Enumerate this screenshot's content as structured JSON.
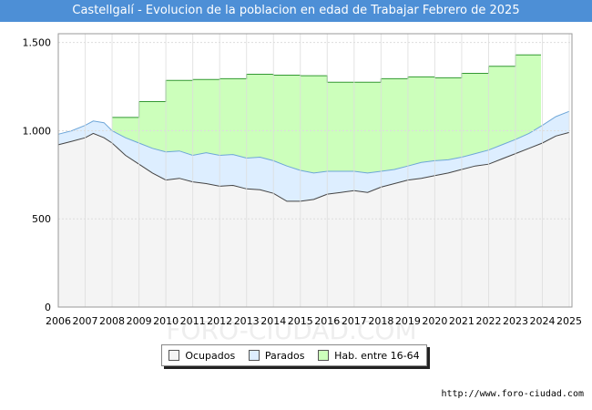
{
  "header": {
    "title": "Castellgalí - Evolucion de la poblacion en edad de Trabajar Febrero de 2025"
  },
  "footer": {
    "source": "http://www.foro-ciudad.com",
    "watermark": "FORO-CIUDAD.COM"
  },
  "colors": {
    "header_bg": "#4d8fd6",
    "ocupados_fill": "#f4f4f4",
    "ocupados_line": "#444444",
    "parados_fill": "#ddeeff",
    "parados_line": "#6ea6d8",
    "hab_fill": "#ccffbb",
    "hab_line": "#339933",
    "grid": "#dddddd",
    "plot_border": "#999999"
  },
  "chart_data": {
    "type": "area",
    "title": "Castellgalí - Evolucion de la poblacion en edad de Trabajar Febrero de 2025",
    "xlabel": "",
    "ylabel": "",
    "xlim": [
      2006,
      2025.1
    ],
    "ylim": [
      0,
      1550
    ],
    "x_ticks": [
      "2006",
      "2007",
      "2008",
      "2009",
      "2010",
      "2011",
      "2012",
      "2013",
      "2014",
      "2015",
      "2016",
      "2017",
      "2018",
      "2019",
      "2020",
      "2021",
      "2022",
      "2023",
      "2024",
      "2025"
    ],
    "y_ticks": [
      {
        "value": 0,
        "label": "0"
      },
      {
        "value": 500,
        "label": "500"
      },
      {
        "value": 1000,
        "label": "1.000"
      },
      {
        "value": 1500,
        "label": "1.500"
      }
    ],
    "legend": [
      "Ocupados",
      "Parados",
      "Hab. entre 16-64"
    ],
    "legend_position": "bottom-center",
    "series": [
      {
        "name": "Hab. entre 16-64",
        "x": [
          2008.0,
          2009.0,
          2009.0,
          2010.0,
          2010.0,
          2011.0,
          2011.0,
          2012.0,
          2012.0,
          2013.0,
          2013.0,
          2014.0,
          2014.0,
          2015.0,
          2015.0,
          2016.0,
          2016.0,
          2017.0,
          2017.0,
          2018.0,
          2018.0,
          2019.0,
          2019.0,
          2020.0,
          2020.0,
          2021.0,
          2021.0,
          2022.0,
          2022.0,
          2023.0,
          2023.0,
          2023.95
        ],
        "values": [
          1075,
          1075,
          1165,
          1165,
          1285,
          1285,
          1290,
          1290,
          1295,
          1295,
          1320,
          1320,
          1315,
          1315,
          1312,
          1312,
          1275,
          1275,
          1275,
          1275,
          1295,
          1295,
          1305,
          1305,
          1300,
          1300,
          1325,
          1325,
          1365,
          1365,
          1430,
          1430
        ]
      },
      {
        "name": "Parados",
        "x": [
          2006.0,
          2006.5,
          2007.0,
          2007.3,
          2007.7,
          2008.0,
          2008.5,
          2009.0,
          2009.5,
          2010.0,
          2010.5,
          2011.0,
          2011.5,
          2012.0,
          2012.5,
          2013.0,
          2013.5,
          2014.0,
          2014.5,
          2015.0,
          2015.5,
          2016.0,
          2016.5,
          2017.0,
          2017.5,
          2018.0,
          2018.5,
          2019.0,
          2019.5,
          2020.0,
          2020.5,
          2021.0,
          2021.5,
          2022.0,
          2022.5,
          2023.0,
          2023.5,
          2024.0,
          2024.5,
          2025.0
        ],
        "values": [
          980,
          1000,
          1030,
          1055,
          1045,
          1000,
          960,
          930,
          900,
          880,
          885,
          860,
          875,
          860,
          865,
          845,
          850,
          830,
          800,
          775,
          760,
          770,
          770,
          770,
          760,
          770,
          780,
          800,
          820,
          830,
          835,
          850,
          870,
          890,
          920,
          950,
          985,
          1030,
          1080,
          1110
        ]
      },
      {
        "name": "Ocupados",
        "x": [
          2006.0,
          2006.5,
          2007.0,
          2007.3,
          2007.7,
          2008.0,
          2008.5,
          2009.0,
          2009.5,
          2010.0,
          2010.5,
          2011.0,
          2011.5,
          2012.0,
          2012.5,
          2013.0,
          2013.5,
          2014.0,
          2014.5,
          2015.0,
          2015.5,
          2016.0,
          2016.5,
          2017.0,
          2017.5,
          2018.0,
          2018.5,
          2019.0,
          2019.5,
          2020.0,
          2020.5,
          2021.0,
          2021.5,
          2022.0,
          2022.5,
          2023.0,
          2023.5,
          2024.0,
          2024.5,
          2025.0
        ],
        "values": [
          920,
          940,
          960,
          985,
          960,
          930,
          860,
          810,
          760,
          720,
          730,
          710,
          700,
          685,
          690,
          670,
          665,
          645,
          600,
          600,
          610,
          640,
          650,
          660,
          650,
          680,
          700,
          720,
          730,
          745,
          760,
          780,
          800,
          810,
          840,
          870,
          900,
          930,
          970,
          990
        ]
      }
    ]
  }
}
